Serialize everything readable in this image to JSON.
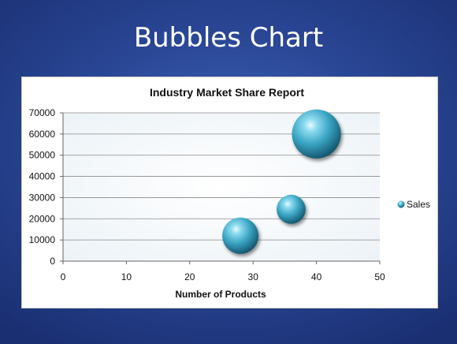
{
  "slide": {
    "title": "Bubbles Chart"
  },
  "chart_data": {
    "type": "bubble",
    "title": "Industry Market Share Report",
    "xlabel": "Number of Products",
    "ylabel": "",
    "xlim": [
      0,
      50
    ],
    "ylim": [
      0,
      70000
    ],
    "x_ticks": [
      0,
      10,
      20,
      30,
      40,
      50
    ],
    "y_ticks": [
      0,
      10000,
      20000,
      30000,
      40000,
      50000,
      60000,
      70000
    ],
    "grid": "horizontal",
    "legend_position": "right",
    "series": [
      {
        "name": "Sales",
        "color": "#3fa3c2",
        "points": [
          {
            "x": 28,
            "y": 12000,
            "size": 1.0
          },
          {
            "x": 36,
            "y": 24500,
            "size": 0.8
          },
          {
            "x": 40,
            "y": 60000,
            "size": 1.35
          }
        ]
      }
    ]
  }
}
